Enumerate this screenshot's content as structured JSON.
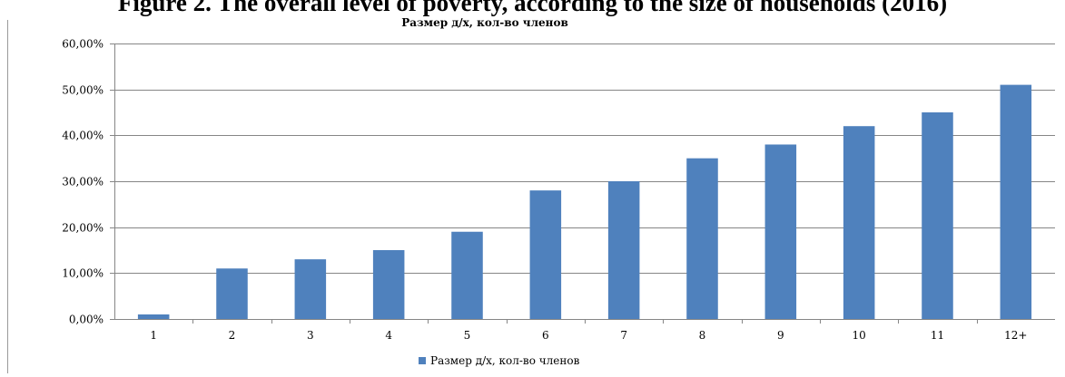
{
  "caption": "Figure 2. The overall level of poverty, according to the size of households (2016)",
  "colors": {
    "bar": "#4f81bd",
    "grid": "#868686",
    "axis": "#868686"
  },
  "chart_data": {
    "type": "bar",
    "title": "Размер д/х, кол-во членов",
    "xlabel": "",
    "ylabel": "",
    "categories": [
      "1",
      "2",
      "3",
      "4",
      "5",
      "6",
      "7",
      "8",
      "9",
      "10",
      "11",
      "12+"
    ],
    "series": [
      {
        "name": "Размер д/х, кол-во членов",
        "values": [
          1,
          11,
          13,
          15,
          19,
          28,
          30,
          35,
          38,
          42,
          45,
          51
        ]
      }
    ],
    "ylim": [
      0,
      60
    ],
    "yticks": [
      0,
      10,
      20,
      30,
      40,
      50,
      60
    ],
    "ytick_labels": [
      "0,00%",
      "10,00%",
      "20,00%",
      "30,00%",
      "40,00%",
      "50,00%",
      "60,00%"
    ],
    "value_unit": "percent",
    "grid": true,
    "legend_position": "bottom"
  }
}
